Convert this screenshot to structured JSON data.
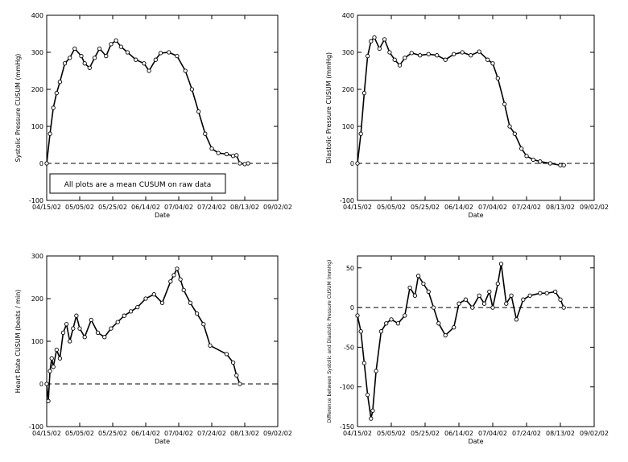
{
  "figure": {
    "x_tick_labels": [
      "04/15/02",
      "05/05/02",
      "05/25/02",
      "06/14/02",
      "07/04/02",
      "07/24/02",
      "08/13/02",
      "09/02/02"
    ],
    "note": "All plots are a mean CUSUM on raw data"
  },
  "chart_data": [
    {
      "type": "line",
      "xlabel": "Date",
      "ylabel": "Systolic Pressure CUSUM (mmHg)",
      "ylim": [
        -100,
        400
      ],
      "yticks": [
        -100,
        0,
        100,
        200,
        300,
        400
      ],
      "ytick_labels": [
        "-100",
        "0",
        "100",
        "200",
        "300",
        "400"
      ],
      "x_range": [
        "04/15/02",
        "09/02/02"
      ],
      "grid": false,
      "baseline": 0,
      "series": [
        {
          "x": [
            "04/15/02",
            "04/17/02",
            "04/19/02",
            "04/21/02",
            "04/23/02",
            "04/26/02",
            "04/29/02",
            "05/02/02",
            "05/06/02",
            "05/08/02",
            "05/11/02",
            "05/14/02",
            "05/17/02",
            "05/21/02",
            "05/24/02",
            "05/27/02",
            "05/30/02",
            "06/03/02",
            "06/08/02",
            "06/13/02",
            "06/16/02",
            "06/20/02",
            "06/23/02",
            "06/28/02",
            "07/03/02",
            "07/08/02",
            "07/12/02",
            "07/16/02",
            "07/20/02",
            "07/24/02",
            "07/28/02",
            "08/02/02",
            "08/06/02",
            "08/08/02",
            "08/10/02",
            "08/13/02",
            "08/15/02"
          ],
          "y": [
            0,
            80,
            150,
            190,
            220,
            270,
            285,
            310,
            290,
            270,
            258,
            285,
            310,
            290,
            322,
            332,
            315,
            300,
            280,
            270,
            250,
            280,
            298,
            300,
            290,
            250,
            200,
            140,
            80,
            40,
            28,
            25,
            20,
            22,
            0,
            -2,
            0
          ]
        }
      ]
    },
    {
      "type": "line",
      "xlabel": "Date",
      "ylabel": "Diastolic Pressure CUSUM (mmHg)",
      "ylim": [
        -100,
        400
      ],
      "yticks": [
        -100,
        0,
        100,
        200,
        300,
        400
      ],
      "ytick_labels": [
        "-100",
        "0",
        "100",
        "200",
        "300",
        "400"
      ],
      "x_range": [
        "04/15/02",
        "09/02/02"
      ],
      "grid": false,
      "baseline": 0,
      "series": [
        {
          "x": [
            "04/15/02",
            "04/17/02",
            "04/19/02",
            "04/21/02",
            "04/23/02",
            "04/25/02",
            "04/28/02",
            "05/01/02",
            "05/04/02",
            "05/07/02",
            "05/10/02",
            "05/13/02",
            "05/17/02",
            "05/22/02",
            "05/27/02",
            "06/01/02",
            "06/06/02",
            "06/11/02",
            "06/16/02",
            "06/21/02",
            "06/26/02",
            "07/01/02",
            "07/04/02",
            "07/07/02",
            "07/11/02",
            "07/14/02",
            "07/17/02",
            "07/21/02",
            "07/24/02",
            "07/28/02",
            "08/01/02",
            "08/07/02",
            "08/13/02",
            "08/15/02"
          ],
          "y": [
            0,
            80,
            190,
            290,
            330,
            340,
            310,
            335,
            300,
            280,
            265,
            285,
            298,
            292,
            295,
            292,
            280,
            295,
            300,
            292,
            302,
            280,
            270,
            230,
            160,
            100,
            80,
            40,
            20,
            10,
            5,
            0,
            -5,
            -5
          ]
        }
      ]
    },
    {
      "type": "line",
      "xlabel": "Date",
      "ylabel": "Heart Rate CUSUM (beats / min)",
      "ylim": [
        -100,
        300
      ],
      "yticks": [
        -100,
        0,
        100,
        200,
        300
      ],
      "ytick_labels": [
        "-100",
        "0",
        "100",
        "200",
        "300"
      ],
      "x_range": [
        "04/15/02",
        "09/02/02"
      ],
      "grid": false,
      "baseline": 0,
      "series": [
        {
          "x": [
            "04/15/02",
            "04/16/02",
            "04/17/02",
            "04/18/02",
            "04/19/02",
            "04/21/02",
            "04/23/02",
            "04/25/02",
            "04/27/02",
            "04/29/02",
            "05/01/02",
            "05/03/02",
            "05/05/02",
            "05/08/02",
            "05/12/02",
            "05/16/02",
            "05/20/02",
            "05/24/02",
            "05/28/02",
            "06/01/02",
            "06/05/02",
            "06/09/02",
            "06/14/02",
            "06/19/02",
            "06/24/02",
            "06/29/02",
            "07/01/02",
            "07/03/02",
            "07/05/02",
            "07/07/02",
            "07/11/02",
            "07/15/02",
            "07/19/02",
            "07/23/02",
            "08/02/02",
            "08/06/02",
            "08/08/02",
            "08/10/02"
          ],
          "y": [
            0,
            -40,
            30,
            60,
            40,
            80,
            60,
            120,
            140,
            100,
            130,
            160,
            130,
            110,
            150,
            120,
            110,
            130,
            145,
            160,
            170,
            180,
            200,
            210,
            190,
            240,
            255,
            270,
            245,
            220,
            190,
            165,
            140,
            90,
            70,
            50,
            20,
            0
          ]
        }
      ]
    },
    {
      "type": "line",
      "xlabel": "Date",
      "ylabel": "Difference between Systolic and Diastolic Pressure CUSUM (mmHg)",
      "ylim": [
        -150,
        65
      ],
      "yticks": [
        -150,
        -100,
        -50,
        0,
        50
      ],
      "ytick_labels": [
        "-150",
        "-100",
        "-50",
        "0",
        "50"
      ],
      "x_range": [
        "04/15/02",
        "09/02/02"
      ],
      "grid": false,
      "baseline": 0,
      "series": [
        {
          "x": [
            "04/15/02",
            "04/17/02",
            "04/19/02",
            "04/21/02",
            "04/23/02",
            "04/24/02",
            "04/26/02",
            "04/29/02",
            "05/02/02",
            "05/05/02",
            "05/09/02",
            "05/13/02",
            "05/16/02",
            "05/19/02",
            "05/21/02",
            "05/24/02",
            "05/27/02",
            "05/30/02",
            "06/02/02",
            "06/06/02",
            "06/11/02",
            "06/14/02",
            "06/18/02",
            "06/22/02",
            "06/26/02",
            "06/29/02",
            "07/02/02",
            "07/04/02",
            "07/07/02",
            "07/09/02",
            "07/12/02",
            "07/15/02",
            "07/18/02",
            "07/22/02",
            "07/26/02",
            "08/01/02",
            "08/05/02",
            "08/10/02",
            "08/13/02",
            "08/15/02"
          ],
          "y": [
            -10,
            -30,
            -70,
            -110,
            -140,
            -130,
            -80,
            -30,
            -20,
            -15,
            -20,
            -10,
            25,
            15,
            40,
            30,
            20,
            0,
            -20,
            -35,
            -25,
            5,
            10,
            0,
            15,
            5,
            20,
            0,
            30,
            55,
            5,
            15,
            -15,
            10,
            15,
            18,
            18,
            20,
            10,
            0
          ]
        }
      ]
    }
  ]
}
